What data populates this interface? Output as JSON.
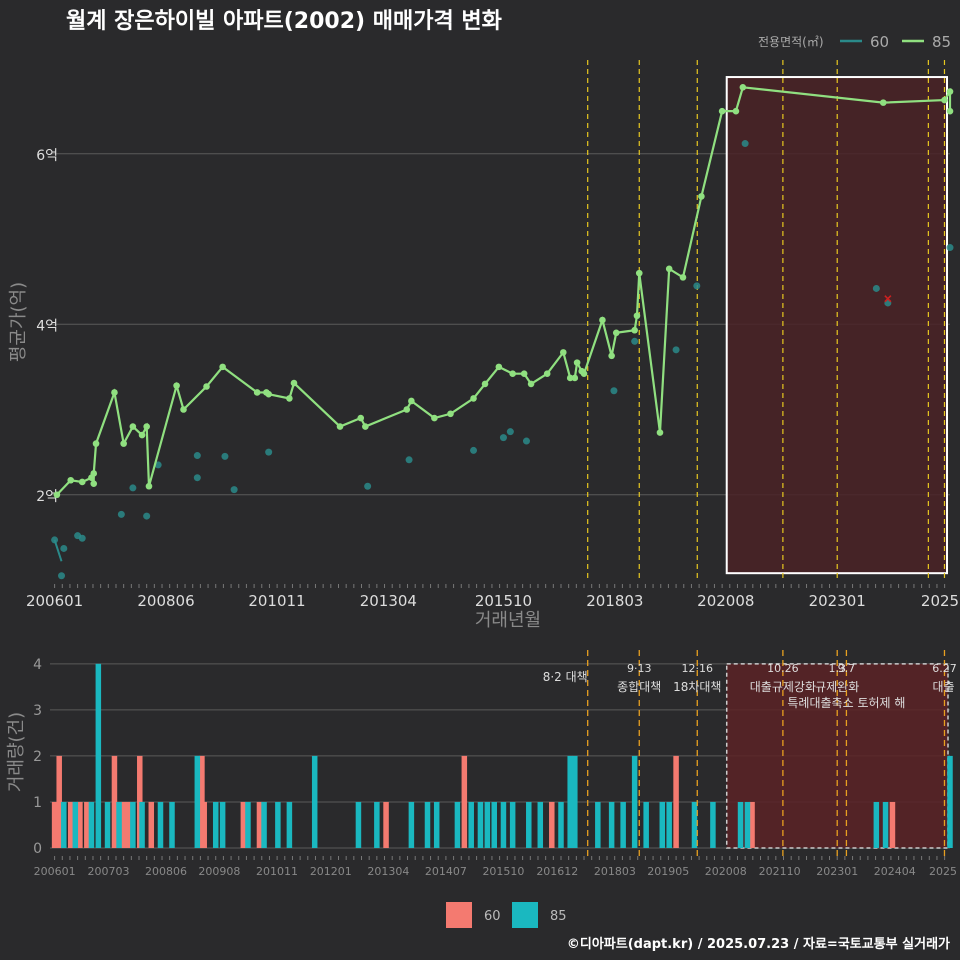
{
  "title": "월계 장은하이빌 아파트(2002) 매매가격 변화",
  "credit": "©디아파트(dapt.kr) / 2025.07.23 / 자료=국토교통부 실거래가",
  "colors": {
    "background": "#2a2a2c",
    "grid": "#5a5a5a",
    "series_60": "#2a8a8a",
    "series_85": "#90e080",
    "bar_60": "#f47a70",
    "bar_85": "#1ab8c0",
    "policy_line": "#e8c820",
    "highlight_fill": "#4a2226",
    "highlight_border": "#ffffff",
    "outlier": "#cc2020"
  },
  "chart_data": [
    {
      "type": "line",
      "title": "월계 장은하이빌 아파트(2002) 매매가격 변화",
      "xlabel": "거래년월",
      "ylabel": "평균가(억)",
      "x_tick_labels": [
        "200601",
        "200806",
        "201011",
        "201304",
        "201510",
        "201803",
        "202008",
        "202301",
        "2025"
      ],
      "y_tick_labels": [
        "2억",
        "4억",
        "6억"
      ],
      "y_ticks": [
        2,
        4,
        6
      ],
      "ylim": [
        1.0,
        7.1
      ],
      "xlim": [
        2005.9,
        2025.45
      ],
      "grid": true,
      "legend": {
        "title": "전용면적(㎡)",
        "entries": [
          "60",
          "85"
        ],
        "placement": "top-right"
      },
      "policy_lines_x": [
        2017.58,
        2018.7,
        2019.96,
        2021.82,
        2023.0,
        2024.98,
        2025.33
      ],
      "highlight_range": {
        "x": [
          2020.6,
          2025.45
        ],
        "y": [
          1.08,
          6.9
        ]
      },
      "series": [
        {
          "name": "60",
          "role": "scatter_points",
          "points": [
            [
              2006.0,
              1.47
            ],
            [
              2006.2,
              1.37
            ],
            [
              2006.15,
              1.05
            ],
            [
              2006.5,
              1.52
            ],
            [
              2006.6,
              1.49
            ],
            [
              2007.45,
              1.77
            ],
            [
              2007.7,
              2.08
            ],
            [
              2008.0,
              1.75
            ],
            [
              2008.25,
              2.35
            ],
            [
              2009.1,
              2.46
            ],
            [
              2009.1,
              2.2
            ],
            [
              2009.7,
              2.45
            ],
            [
              2009.9,
              2.06
            ],
            [
              2010.65,
              2.5
            ],
            [
              2012.8,
              2.1
            ],
            [
              2013.7,
              2.41
            ],
            [
              2015.1,
              2.52
            ],
            [
              2015.75,
              2.67
            ],
            [
              2015.9,
              2.74
            ],
            [
              2016.25,
              2.63
            ],
            [
              2018.15,
              3.22
            ],
            [
              2018.6,
              3.8
            ],
            [
              2019.5,
              3.7
            ],
            [
              2019.95,
              4.45
            ],
            [
              2021.0,
              6.12
            ],
            [
              2023.85,
              4.42
            ],
            [
              2024.1,
              4.25
            ],
            [
              2025.45,
              4.9
            ]
          ]
        },
        {
          "name": "60",
          "role": "line_segment",
          "points": [
            [
              2006.0,
              1.47
            ],
            [
              2006.15,
              1.22
            ]
          ]
        },
        {
          "name": "85",
          "role": "line",
          "points": [
            [
              2006.05,
              2.0
            ],
            [
              2006.35,
              2.17
            ],
            [
              2006.6,
              2.15
            ],
            [
              2006.8,
              2.2
            ],
            [
              2006.85,
              2.13
            ],
            [
              2006.85,
              2.25
            ],
            [
              2006.9,
              2.6
            ],
            [
              2007.3,
              3.2
            ],
            [
              2007.5,
              2.6
            ],
            [
              2007.7,
              2.8
            ],
            [
              2007.9,
              2.7
            ],
            [
              2008.0,
              2.8
            ],
            [
              2008.05,
              2.1
            ],
            [
              2008.65,
              3.28
            ],
            [
              2008.8,
              3.0
            ],
            [
              2009.3,
              3.27
            ],
            [
              2009.65,
              3.5
            ],
            [
              2010.4,
              3.2
            ],
            [
              2010.6,
              3.2
            ],
            [
              2010.65,
              3.18
            ],
            [
              2011.1,
              3.13
            ],
            [
              2011.2,
              3.31
            ],
            [
              2012.2,
              2.8
            ],
            [
              2012.65,
              2.9
            ],
            [
              2012.75,
              2.8
            ],
            [
              2013.65,
              3.0
            ],
            [
              2013.75,
              3.1
            ],
            [
              2014.25,
              2.9
            ],
            [
              2014.6,
              2.95
            ],
            [
              2015.1,
              3.13
            ],
            [
              2015.35,
              3.3
            ],
            [
              2015.65,
              3.5
            ],
            [
              2015.95,
              3.42
            ],
            [
              2016.2,
              3.42
            ],
            [
              2016.35,
              3.3
            ],
            [
              2016.7,
              3.42
            ],
            [
              2017.05,
              3.67
            ],
            [
              2017.2,
              3.37
            ],
            [
              2017.3,
              3.37
            ],
            [
              2017.35,
              3.55
            ],
            [
              2017.45,
              3.45
            ],
            [
              2017.5,
              3.42
            ],
            [
              2017.9,
              4.05
            ],
            [
              2018.1,
              3.63
            ],
            [
              2018.2,
              3.9
            ],
            [
              2018.6,
              3.93
            ],
            [
              2018.65,
              4.1
            ],
            [
              2018.7,
              4.6
            ],
            [
              2019.15,
              2.73
            ],
            [
              2019.35,
              4.65
            ],
            [
              2019.65,
              4.55
            ],
            [
              2020.05,
              5.5
            ],
            [
              2020.5,
              6.5
            ],
            [
              2020.8,
              6.5
            ],
            [
              2020.95,
              6.78
            ],
            [
              2024.0,
              6.6
            ],
            [
              2025.33,
              6.63
            ],
            [
              2025.45,
              6.73
            ],
            [
              2025.45,
              6.5
            ]
          ]
        },
        {
          "name": "",
          "role": "outlier_marker",
          "points": [
            [
              2024.1,
              4.3
            ]
          ]
        }
      ]
    },
    {
      "type": "bar",
      "title": "",
      "xlabel": "",
      "ylabel": "거래량(건)",
      "x_tick_labels": [
        "200601",
        "200703",
        "200806",
        "200908",
        "201011",
        "201201",
        "201304",
        "201407",
        "201510",
        "201612",
        "201803",
        "201905",
        "202008",
        "202110",
        "202301",
        "202404",
        "2025"
      ],
      "y_tick_labels": [
        "0",
        "1",
        "2",
        "3",
        "4"
      ],
      "y_ticks": [
        0,
        1,
        2,
        3,
        4
      ],
      "ylim": [
        0,
        4.3
      ],
      "xlim": [
        2005.9,
        2025.45
      ],
      "grid": true,
      "legend": {
        "entries": [
          "60",
          "85"
        ],
        "placement": "bottom"
      },
      "highlight_range": {
        "x": [
          2020.6,
          2025.45
        ]
      },
      "policy_events": [
        {
          "x": 2017.58,
          "date": "",
          "label": "8·2 대책"
        },
        {
          "x": 2018.7,
          "date": "9·13",
          "label": "종합대책"
        },
        {
          "x": 2019.96,
          "date": "12·16",
          "label": "18차대책"
        },
        {
          "x": 2021.82,
          "date": "10.26",
          "label": "대출규제강화"
        },
        {
          "x": 2023.0,
          "date": "1.3",
          "label": "규제완화"
        },
        {
          "x": 2023.2,
          "date": "9.7",
          "label": "특례대출축소 토허제 해"
        },
        {
          "x": 2025.33,
          "date": "6.27",
          "label": "대출"
        }
      ],
      "series": [
        {
          "name": "60",
          "bars": [
            [
              2006.0,
              1
            ],
            [
              2006.1,
              2
            ],
            [
              2006.35,
              1
            ],
            [
              2006.55,
              1
            ],
            [
              2006.7,
              1
            ],
            [
              2007.3,
              2
            ],
            [
              2007.5,
              1
            ],
            [
              2007.6,
              1
            ],
            [
              2007.85,
              2
            ],
            [
              2008.1,
              1
            ],
            [
              2009.2,
              2
            ],
            [
              2009.25,
              1
            ],
            [
              2010.1,
              1
            ],
            [
              2010.45,
              1
            ],
            [
              2013.2,
              1
            ],
            [
              2014.9,
              2
            ],
            [
              2016.8,
              1
            ],
            [
              2019.5,
              2
            ],
            [
              2021.15,
              1
            ],
            [
              2024.2,
              1
            ]
          ]
        },
        {
          "name": "85",
          "bars": [
            [
              2006.2,
              1
            ],
            [
              2006.45,
              1
            ],
            [
              2006.8,
              1
            ],
            [
              2006.95,
              4
            ],
            [
              2007.15,
              1
            ],
            [
              2007.4,
              1
            ],
            [
              2007.7,
              1
            ],
            [
              2007.9,
              1
            ],
            [
              2008.3,
              1
            ],
            [
              2008.55,
              1
            ],
            [
              2009.1,
              2
            ],
            [
              2009.5,
              1
            ],
            [
              2009.65,
              1
            ],
            [
              2010.2,
              1
            ],
            [
              2010.55,
              1
            ],
            [
              2010.85,
              1
            ],
            [
              2011.1,
              1
            ],
            [
              2011.65,
              2
            ],
            [
              2012.6,
              1
            ],
            [
              2013.0,
              1
            ],
            [
              2013.75,
              1
            ],
            [
              2014.1,
              1
            ],
            [
              2014.3,
              1
            ],
            [
              2014.75,
              1
            ],
            [
              2015.05,
              1
            ],
            [
              2015.25,
              1
            ],
            [
              2015.4,
              1
            ],
            [
              2015.55,
              1
            ],
            [
              2015.75,
              1
            ],
            [
              2015.95,
              1
            ],
            [
              2016.3,
              1
            ],
            [
              2016.55,
              1
            ],
            [
              2017.0,
              1
            ],
            [
              2017.2,
              2
            ],
            [
              2017.3,
              2
            ],
            [
              2017.8,
              1
            ],
            [
              2018.1,
              1
            ],
            [
              2018.35,
              1
            ],
            [
              2018.6,
              2
            ],
            [
              2018.85,
              1
            ],
            [
              2019.2,
              1
            ],
            [
              2019.35,
              1
            ],
            [
              2019.9,
              1
            ],
            [
              2020.3,
              1
            ],
            [
              2020.9,
              1
            ],
            [
              2021.05,
              1
            ],
            [
              2023.85,
              1
            ],
            [
              2024.05,
              1
            ],
            [
              2025.45,
              2
            ]
          ]
        }
      ]
    }
  ]
}
